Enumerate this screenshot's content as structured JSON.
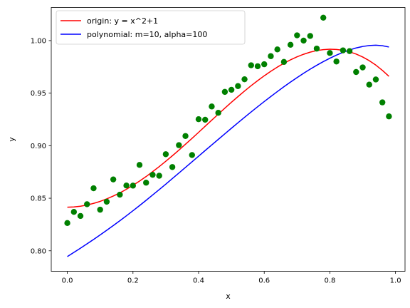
{
  "chart_data": {
    "type": "scatter",
    "title": "",
    "xlabel": "x",
    "ylabel": "y",
    "xlim": [
      -0.049,
      1.029
    ],
    "ylim": [
      0.7805,
      1.0315
    ],
    "xticks": [
      0.0,
      0.2,
      0.4,
      0.6,
      0.8,
      1.0
    ],
    "xtick_labels": [
      "0.0",
      "0.2",
      "0.4",
      "0.6",
      "0.8",
      "1.0"
    ],
    "yticks": [
      0.8,
      0.85,
      0.9,
      0.95,
      1.0
    ],
    "ytick_labels": [
      "0.80",
      "0.85",
      "0.90",
      "0.95",
      "1.00"
    ],
    "grid": false,
    "legend_position": "top-left",
    "series": [
      {
        "name": "origin: y = x^2+1",
        "kind": "line",
        "color": "#ff0000",
        "x": [
          0.0,
          0.02,
          0.04,
          0.06,
          0.08,
          0.1,
          0.12,
          0.14,
          0.16,
          0.18,
          0.2,
          0.22,
          0.24,
          0.26,
          0.28,
          0.3,
          0.32,
          0.34,
          0.36,
          0.38,
          0.4,
          0.42,
          0.44,
          0.46,
          0.48,
          0.5,
          0.52,
          0.54,
          0.56,
          0.58,
          0.6,
          0.62,
          0.64,
          0.66,
          0.68,
          0.7,
          0.72,
          0.74,
          0.76,
          0.78,
          0.8,
          0.82,
          0.84,
          0.86,
          0.88,
          0.9,
          0.92,
          0.94,
          0.96,
          0.98
        ],
        "y": [
          0.8415,
          0.8417,
          0.8424,
          0.8436,
          0.8451,
          0.847,
          0.8494,
          0.8521,
          0.8551,
          0.8585,
          0.8623,
          0.8663,
          0.8706,
          0.8753,
          0.8801,
          0.8852,
          0.8904,
          0.8958,
          0.9014,
          0.907,
          0.9127,
          0.9185,
          0.9243,
          0.93,
          0.9357,
          0.9413,
          0.9467,
          0.952,
          0.9571,
          0.9619,
          0.9665,
          0.9708,
          0.9748,
          0.9784,
          0.9817,
          0.9846,
          0.987,
          0.989,
          0.9905,
          0.9914,
          0.9918,
          0.9916,
          0.9908,
          0.9893,
          0.9872,
          0.9844,
          0.9809,
          0.9767,
          0.9717,
          0.966
        ]
      },
      {
        "name": "polynomial: m=10, alpha=100",
        "kind": "line",
        "color": "#0000ff",
        "x": [
          0.0,
          0.02,
          0.04,
          0.06,
          0.08,
          0.1,
          0.12,
          0.14,
          0.16,
          0.18,
          0.2,
          0.22,
          0.24,
          0.26,
          0.28,
          0.3,
          0.32,
          0.34,
          0.36,
          0.38,
          0.4,
          0.42,
          0.44,
          0.46,
          0.48,
          0.5,
          0.52,
          0.54,
          0.56,
          0.58,
          0.6,
          0.62,
          0.64,
          0.66,
          0.68,
          0.7,
          0.72,
          0.74,
          0.76,
          0.78,
          0.8,
          0.82,
          0.84,
          0.86,
          0.88,
          0.9,
          0.92,
          0.94,
          0.96,
          0.98
        ],
        "y": [
          0.7945,
          0.7985,
          0.8025,
          0.8066,
          0.8108,
          0.8151,
          0.8195,
          0.824,
          0.8286,
          0.8333,
          0.8381,
          0.843,
          0.848,
          0.8531,
          0.8582,
          0.8634,
          0.8687,
          0.874,
          0.8793,
          0.8847,
          0.89,
          0.8954,
          0.9007,
          0.906,
          0.9113,
          0.9166,
          0.9218,
          0.927,
          0.9321,
          0.9371,
          0.942,
          0.9468,
          0.9515,
          0.9561,
          0.9605,
          0.9648,
          0.9689,
          0.9728,
          0.9765,
          0.98,
          0.9832,
          0.9862,
          0.9888,
          0.9911,
          0.993,
          0.9944,
          0.9953,
          0.9956,
          0.9951,
          0.9939
        ]
      },
      {
        "name": "",
        "kind": "scatter",
        "color": "#008000",
        "x": [
          0.0,
          0.02,
          0.04,
          0.06,
          0.08,
          0.1,
          0.12,
          0.14,
          0.16,
          0.18,
          0.2,
          0.22,
          0.24,
          0.26,
          0.28,
          0.3,
          0.32,
          0.34,
          0.36,
          0.38,
          0.4,
          0.42,
          0.44,
          0.46,
          0.48,
          0.5,
          0.52,
          0.54,
          0.56,
          0.58,
          0.6,
          0.62,
          0.64,
          0.66,
          0.68,
          0.7,
          0.72,
          0.74,
          0.76,
          0.78,
          0.8,
          0.82,
          0.84,
          0.86,
          0.88,
          0.9,
          0.92,
          0.94,
          0.96,
          0.98
        ],
        "y": [
          0.8264,
          0.837,
          0.8331,
          0.8443,
          0.8595,
          0.8391,
          0.8467,
          0.8679,
          0.8534,
          0.8621,
          0.862,
          0.8817,
          0.8648,
          0.8723,
          0.8714,
          0.8919,
          0.8797,
          0.9005,
          0.9092,
          0.8911,
          0.9252,
          0.9247,
          0.9373,
          0.9313,
          0.9512,
          0.9532,
          0.9567,
          0.9632,
          0.9765,
          0.9756,
          0.9775,
          0.9852,
          0.9916,
          0.9797,
          0.996,
          1.005,
          1.0,
          1.0044,
          0.9924,
          1.0218,
          0.9882,
          0.9801,
          0.9907,
          0.99,
          0.9701,
          0.9745,
          0.9581,
          0.963,
          0.9412,
          0.9279
        ]
      }
    ]
  }
}
